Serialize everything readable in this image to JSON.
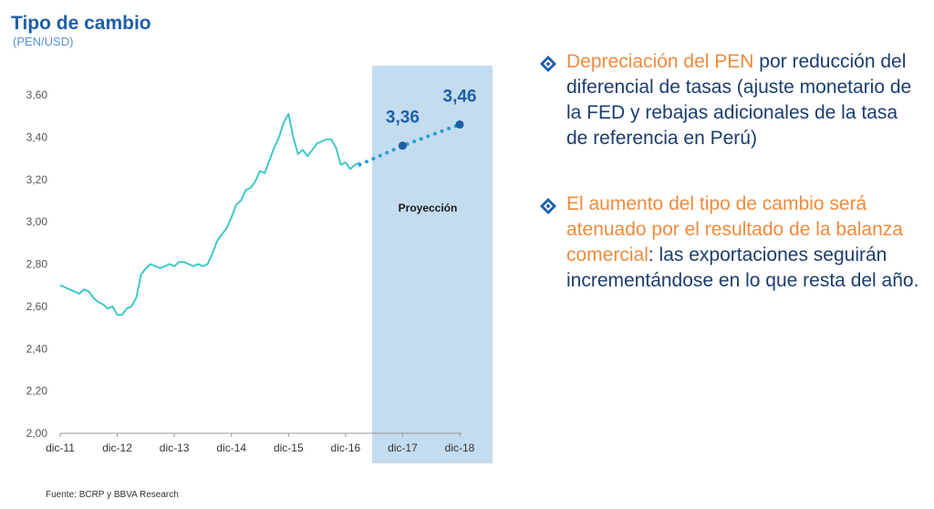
{
  "header": {
    "title": "Tipo de cambio",
    "subtitle": "(PEN/USD)"
  },
  "source": "Fuente: BCRP y BBVA Research",
  "bullets": [
    {
      "highlight": "Depreciación del PEN",
      "rest": " por reducción del diferencial de tasas (ajuste monetario de la FED y rebajas adicionales de la tasa de referencia en Perú)"
    },
    {
      "highlight": "El aumento del tipo de cambio será atenuado por el resultado de la balanza comercial",
      "rest": ": las exportaciones seguirán incrementándose en lo que resta del año."
    }
  ],
  "colors": {
    "history_line": "#3ec8c8",
    "projection_line": "#2a9fd6",
    "projection_band": "#c4dcf0",
    "marker": "#1c5fa8",
    "highlight_text": "#f08a3c",
    "body_text": "#1b3d6e"
  },
  "chart_data": {
    "type": "line",
    "x_ticks": [
      "dic-11",
      "dic-12",
      "dic-13",
      "dic-14",
      "dic-15",
      "dic-16",
      "dic-17",
      "dic-18"
    ],
    "ylim": [
      2.0,
      3.6
    ],
    "y_ticks": [
      "2,00",
      "2,20",
      "2,40",
      "2,60",
      "2,80",
      "3,00",
      "3,20",
      "3,40",
      "3,60"
    ],
    "grid": false,
    "projection_band_label": "Proyección",
    "series": [
      {
        "style": "solid",
        "points": [
          [
            "2011-12",
            2.7
          ],
          [
            "2012-01",
            2.69
          ],
          [
            "2012-02",
            2.68
          ],
          [
            "2012-03",
            2.67
          ],
          [
            "2012-04",
            2.66
          ],
          [
            "2012-05",
            2.68
          ],
          [
            "2012-06",
            2.67
          ],
          [
            "2012-07",
            2.64
          ],
          [
            "2012-08",
            2.62
          ],
          [
            "2012-09",
            2.61
          ],
          [
            "2012-10",
            2.59
          ],
          [
            "2012-11",
            2.6
          ],
          [
            "2012-12",
            2.56
          ],
          [
            "2013-01",
            2.56
          ],
          [
            "2013-02",
            2.59
          ],
          [
            "2013-03",
            2.6
          ],
          [
            "2013-04",
            2.64
          ],
          [
            "2013-05",
            2.75
          ],
          [
            "2013-06",
            2.78
          ],
          [
            "2013-07",
            2.8
          ],
          [
            "2013-08",
            2.79
          ],
          [
            "2013-09",
            2.78
          ],
          [
            "2013-10",
            2.79
          ],
          [
            "2013-11",
            2.8
          ],
          [
            "2013-12",
            2.79
          ],
          [
            "2014-01",
            2.81
          ],
          [
            "2014-02",
            2.81
          ],
          [
            "2014-03",
            2.8
          ],
          [
            "2014-04",
            2.79
          ],
          [
            "2014-05",
            2.8
          ],
          [
            "2014-06",
            2.79
          ],
          [
            "2014-07",
            2.8
          ],
          [
            "2014-08",
            2.85
          ],
          [
            "2014-09",
            2.91
          ],
          [
            "2014-10",
            2.94
          ],
          [
            "2014-11",
            2.97
          ],
          [
            "2014-12",
            3.02
          ],
          [
            "2015-01",
            3.08
          ],
          [
            "2015-02",
            3.1
          ],
          [
            "2015-03",
            3.15
          ],
          [
            "2015-04",
            3.16
          ],
          [
            "2015-05",
            3.19
          ],
          [
            "2015-06",
            3.24
          ],
          [
            "2015-07",
            3.23
          ],
          [
            "2015-08",
            3.29
          ],
          [
            "2015-09",
            3.35
          ],
          [
            "2015-10",
            3.4
          ],
          [
            "2015-11",
            3.47
          ],
          [
            "2015-12",
            3.51
          ],
          [
            "2016-01",
            3.4
          ],
          [
            "2016-02",
            3.32
          ],
          [
            "2016-03",
            3.34
          ],
          [
            "2016-04",
            3.31
          ],
          [
            "2016-05",
            3.34
          ],
          [
            "2016-06",
            3.37
          ],
          [
            "2016-07",
            3.38
          ],
          [
            "2016-08",
            3.39
          ],
          [
            "2016-09",
            3.39
          ],
          [
            "2016-10",
            3.35
          ],
          [
            "2016-11",
            3.27
          ],
          [
            "2016-12",
            3.28
          ],
          [
            "2017-01",
            3.25
          ],
          [
            "2017-02",
            3.27
          ],
          [
            "2017-03",
            3.28
          ]
        ]
      },
      {
        "style": "dotted",
        "points": [
          [
            "2017-03",
            3.27
          ],
          [
            "2017-12",
            3.36
          ],
          [
            "2018-12",
            3.46
          ]
        ]
      }
    ],
    "annotations": [
      {
        "x": "2017-12",
        "y": 3.36,
        "label": "3,36"
      },
      {
        "x": "2018-12",
        "y": 3.46,
        "label": "3,46"
      }
    ]
  }
}
